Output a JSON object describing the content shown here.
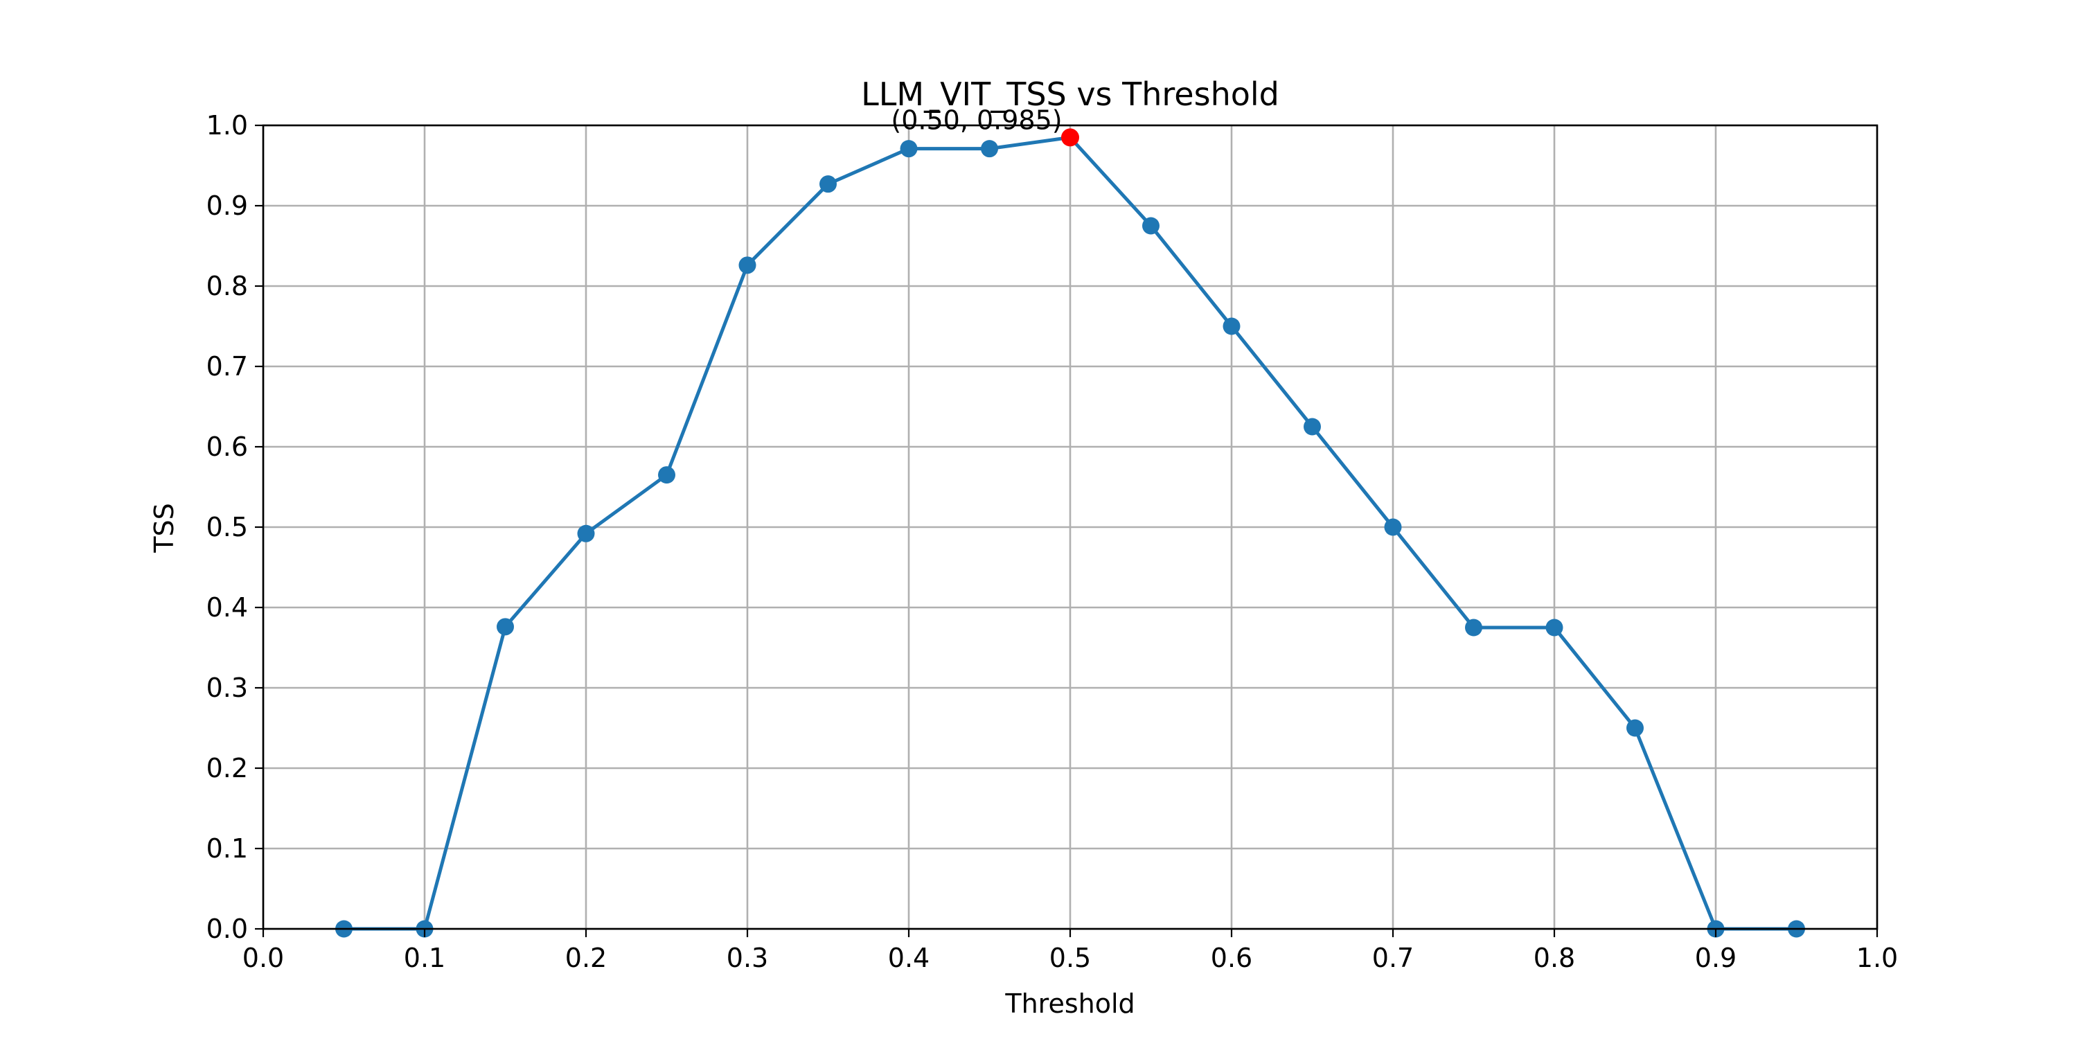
{
  "chart_data": {
    "type": "line",
    "title": "LLM_VIT_TSS vs Threshold",
    "xlabel": "Threshold",
    "ylabel": "TSS",
    "xlim": [
      0.0,
      1.0
    ],
    "ylim": [
      0.0,
      1.0
    ],
    "x_ticks": [
      "0.0",
      "0.1",
      "0.2",
      "0.3",
      "0.4",
      "0.5",
      "0.6",
      "0.7",
      "0.8",
      "0.9",
      "1.0"
    ],
    "y_ticks": [
      "0.0",
      "0.1",
      "0.2",
      "0.3",
      "0.4",
      "0.5",
      "0.6",
      "0.7",
      "0.8",
      "0.9",
      "1.0"
    ],
    "grid": true,
    "series": [
      {
        "color": "#1f77b4",
        "x": [
          0.05,
          0.1,
          0.15,
          0.2,
          0.25,
          0.3,
          0.35,
          0.4,
          0.45,
          0.5,
          0.55,
          0.6,
          0.65,
          0.7,
          0.75,
          0.8,
          0.85,
          0.9,
          0.95
        ],
        "y": [
          0.0,
          0.0,
          0.376,
          0.492,
          0.565,
          0.826,
          0.927,
          0.971,
          0.971,
          0.985,
          0.875,
          0.75,
          0.625,
          0.5,
          0.375,
          0.375,
          0.25,
          0.0,
          0.0
        ]
      }
    ],
    "highlight": {
      "x": 0.5,
      "y": 0.985,
      "color": "#ff0000",
      "label": "(0.50, 0.985)"
    }
  }
}
